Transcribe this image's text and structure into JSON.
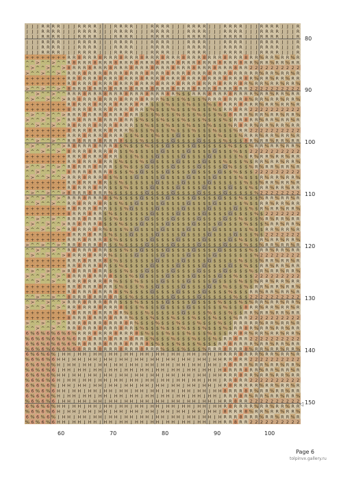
{
  "pattern": {
    "row_labels": [
      "80",
      "90",
      "100",
      "110",
      "120",
      "130",
      "140",
      "150"
    ],
    "col_labels": [
      "60",
      "70",
      "80",
      "90",
      "100"
    ],
    "symbols": [
      "R",
      "J",
      "%",
      "$",
      "G",
      "2",
      "8",
      "^",
      "+",
      ">",
      "6",
      "H",
      "D"
    ],
    "palette": {
      "R": "#d6c7a8",
      "J": "#c8b898",
      "%": "#c9a97a",
      "$": "#b7a774",
      "G": "#a59880",
      "2": "#cfa882",
      "8": "#d79a70",
      "^": "#c2bb7c",
      "+": "#cf9b65",
      ">": "#d6b590",
      "6": "#d9a080",
      "H": "#cdbb9a",
      "D": "#caa67a"
    }
  },
  "footer": {
    "page_label": "Page 6",
    "watermark": "tolpinvx.gallery.ru"
  }
}
